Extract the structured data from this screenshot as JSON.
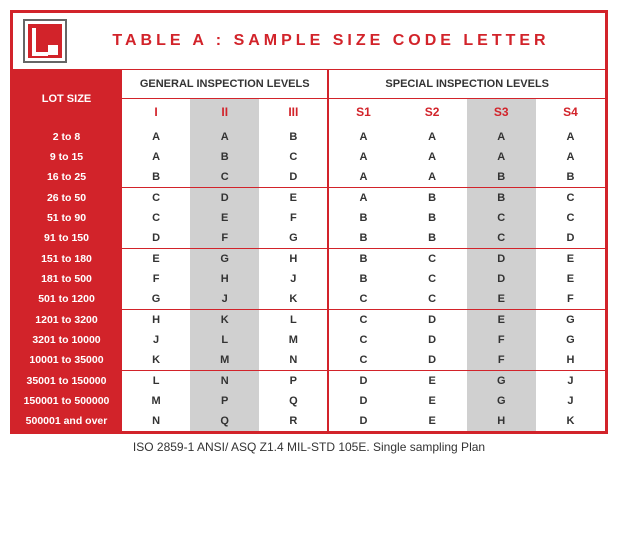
{
  "title": "TABLE A : SAMPLE SIZE CODE LETTER",
  "footer": "ISO 2859-1 ANSI/ ASQ Z1.4 MIL-STD 105E. Single sampling Plan",
  "colors": {
    "brand_red": "#d2232a",
    "shaded_gray": "#d0d0d0",
    "text_dark": "#333333",
    "background": "#ffffff"
  },
  "headers": {
    "lot_size": "LOT SIZE",
    "general": "GENERAL INSPECTION LEVELS",
    "special": "SPECIAL INSPECTION LEVELS",
    "general_levels": [
      "I",
      "II",
      "III"
    ],
    "special_levels": [
      "S1",
      "S2",
      "S3",
      "S4"
    ]
  },
  "shaded_general_index": 1,
  "shaded_special_index": 2,
  "group_sizes": [
    3,
    3,
    3,
    3,
    3
  ],
  "rows": [
    {
      "lot": "2 to 8",
      "g": [
        "A",
        "A",
        "B"
      ],
      "s": [
        "A",
        "A",
        "A",
        "A"
      ]
    },
    {
      "lot": "9 to 15",
      "g": [
        "A",
        "B",
        "C"
      ],
      "s": [
        "A",
        "A",
        "A",
        "A"
      ]
    },
    {
      "lot": "16 to 25",
      "g": [
        "B",
        "C",
        "D"
      ],
      "s": [
        "A",
        "A",
        "B",
        "B"
      ]
    },
    {
      "lot": "26 to 50",
      "g": [
        "C",
        "D",
        "E"
      ],
      "s": [
        "A",
        "B",
        "B",
        "C"
      ]
    },
    {
      "lot": "51 to 90",
      "g": [
        "C",
        "E",
        "F"
      ],
      "s": [
        "B",
        "B",
        "C",
        "C"
      ]
    },
    {
      "lot": "91 to 150",
      "g": [
        "D",
        "F",
        "G"
      ],
      "s": [
        "B",
        "B",
        "C",
        "D"
      ]
    },
    {
      "lot": "151 to 180",
      "g": [
        "E",
        "G",
        "H"
      ],
      "s": [
        "B",
        "C",
        "D",
        "E"
      ]
    },
    {
      "lot": "181 to 500",
      "g": [
        "F",
        "H",
        "J"
      ],
      "s": [
        "B",
        "C",
        "D",
        "E"
      ]
    },
    {
      "lot": "501 to 1200",
      "g": [
        "G",
        "J",
        "K"
      ],
      "s": [
        "C",
        "C",
        "E",
        "F"
      ]
    },
    {
      "lot": "1201 to 3200",
      "g": [
        "H",
        "K",
        "L"
      ],
      "s": [
        "C",
        "D",
        "E",
        "G"
      ]
    },
    {
      "lot": "3201 to 10000",
      "g": [
        "J",
        "L",
        "M"
      ],
      "s": [
        "C",
        "D",
        "F",
        "G"
      ]
    },
    {
      "lot": "10001 to 35000",
      "g": [
        "K",
        "M",
        "N"
      ],
      "s": [
        "C",
        "D",
        "F",
        "H"
      ]
    },
    {
      "lot": "35001 to 150000",
      "g": [
        "L",
        "N",
        "P"
      ],
      "s": [
        "D",
        "E",
        "G",
        "J"
      ]
    },
    {
      "lot": "150001 to 500000",
      "g": [
        "M",
        "P",
        "Q"
      ],
      "s": [
        "D",
        "E",
        "G",
        "J"
      ]
    },
    {
      "lot": "500001  and over",
      "g": [
        "N",
        "Q",
        "R"
      ],
      "s": [
        "D",
        "E",
        "H",
        "K"
      ]
    }
  ]
}
